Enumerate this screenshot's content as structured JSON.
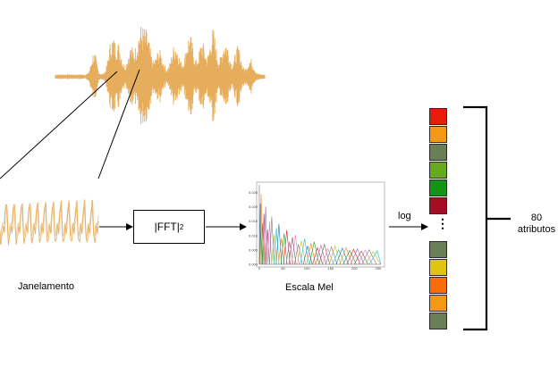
{
  "labels": {
    "windowing": "Janelamento",
    "fft_prefix": "|FFT|",
    "fft_exponent": "2",
    "mel": "Escala Mel",
    "log": "log",
    "dots": "⋮",
    "attributes_count": "80",
    "attributes_word": "atributos"
  },
  "colors": {
    "waveform": "#e6ad5c",
    "stroke": "#000000"
  },
  "feature_vector": {
    "top_cells": [
      "#e81c0c",
      "#f39a14",
      "#6b7f57",
      "#66aa22",
      "#139413",
      "#a50d23"
    ],
    "bottom_cells": [
      "#6b7f57",
      "#e0c510",
      "#f96c0a",
      "#f39a14",
      "#6b7f57"
    ]
  },
  "mel_plot": {
    "y_ticks": [
      "0.025",
      "0.020",
      "0.015",
      "0.010",
      "0.005",
      "0.000"
    ],
    "x_ticks": [
      "0",
      "50",
      "100",
      "150",
      "200",
      "250"
    ],
    "filter_colors": [
      "#1f77b4",
      "#ff7f0e",
      "#2ca02c",
      "#d62728",
      "#9467bd",
      "#8c564b",
      "#e377c2",
      "#7f7f7f",
      "#bcbd22",
      "#17becf"
    ]
  }
}
